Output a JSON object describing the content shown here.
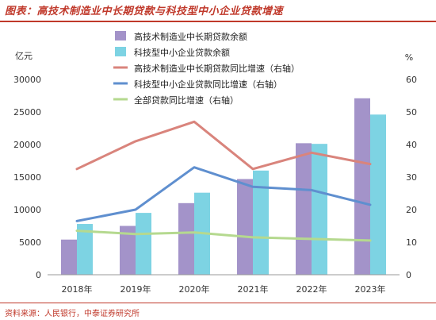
{
  "header": {
    "title": "图表：高技术制造业中长期贷款与科技型中小企业贷款增速",
    "source": "资料来源：人民银行，中泰证券研究所"
  },
  "chart_data": {
    "type": "bar",
    "categories": [
      "2018年",
      "2019年",
      "2020年",
      "2021年",
      "2022年",
      "2023年"
    ],
    "ylabel_left": "亿元",
    "ylabel_right": "%",
    "ylim_left": [
      0,
      30000
    ],
    "yticks_left": [
      0,
      5000,
      10000,
      15000,
      20000,
      25000,
      30000
    ],
    "ylim_right": [
      0,
      60
    ],
    "yticks_right": [
      0,
      10,
      20,
      30,
      40,
      50,
      60
    ],
    "legend_position": "top",
    "bar_series": [
      {
        "name": "高技术制造业中长期贷款余额",
        "color": "#a393c9",
        "values": [
          5400,
          7500,
          11000,
          14700,
          20200,
          27100
        ]
      },
      {
        "name": "科技型中小企业贷款余额",
        "color": "#7dd3e3",
        "values": [
          7800,
          9500,
          12600,
          16000,
          20100,
          24600
        ]
      }
    ],
    "line_series": [
      {
        "name": "高技术制造业中长期贷款同比增速（右轴）",
        "color": "#d9847c",
        "values": [
          32.5,
          41,
          47,
          32.5,
          37.5,
          34
        ]
      },
      {
        "name": "科技型中小企业贷款同比增速（右轴）",
        "color": "#5f8fcf",
        "values": [
          16.5,
          20,
          33,
          27,
          26,
          21.5
        ]
      },
      {
        "name": "全部贷款同比增速（右轴）",
        "color": "#b5d98f",
        "values": [
          13.5,
          12.5,
          13,
          11.5,
          11,
          10.5
        ]
      }
    ]
  }
}
